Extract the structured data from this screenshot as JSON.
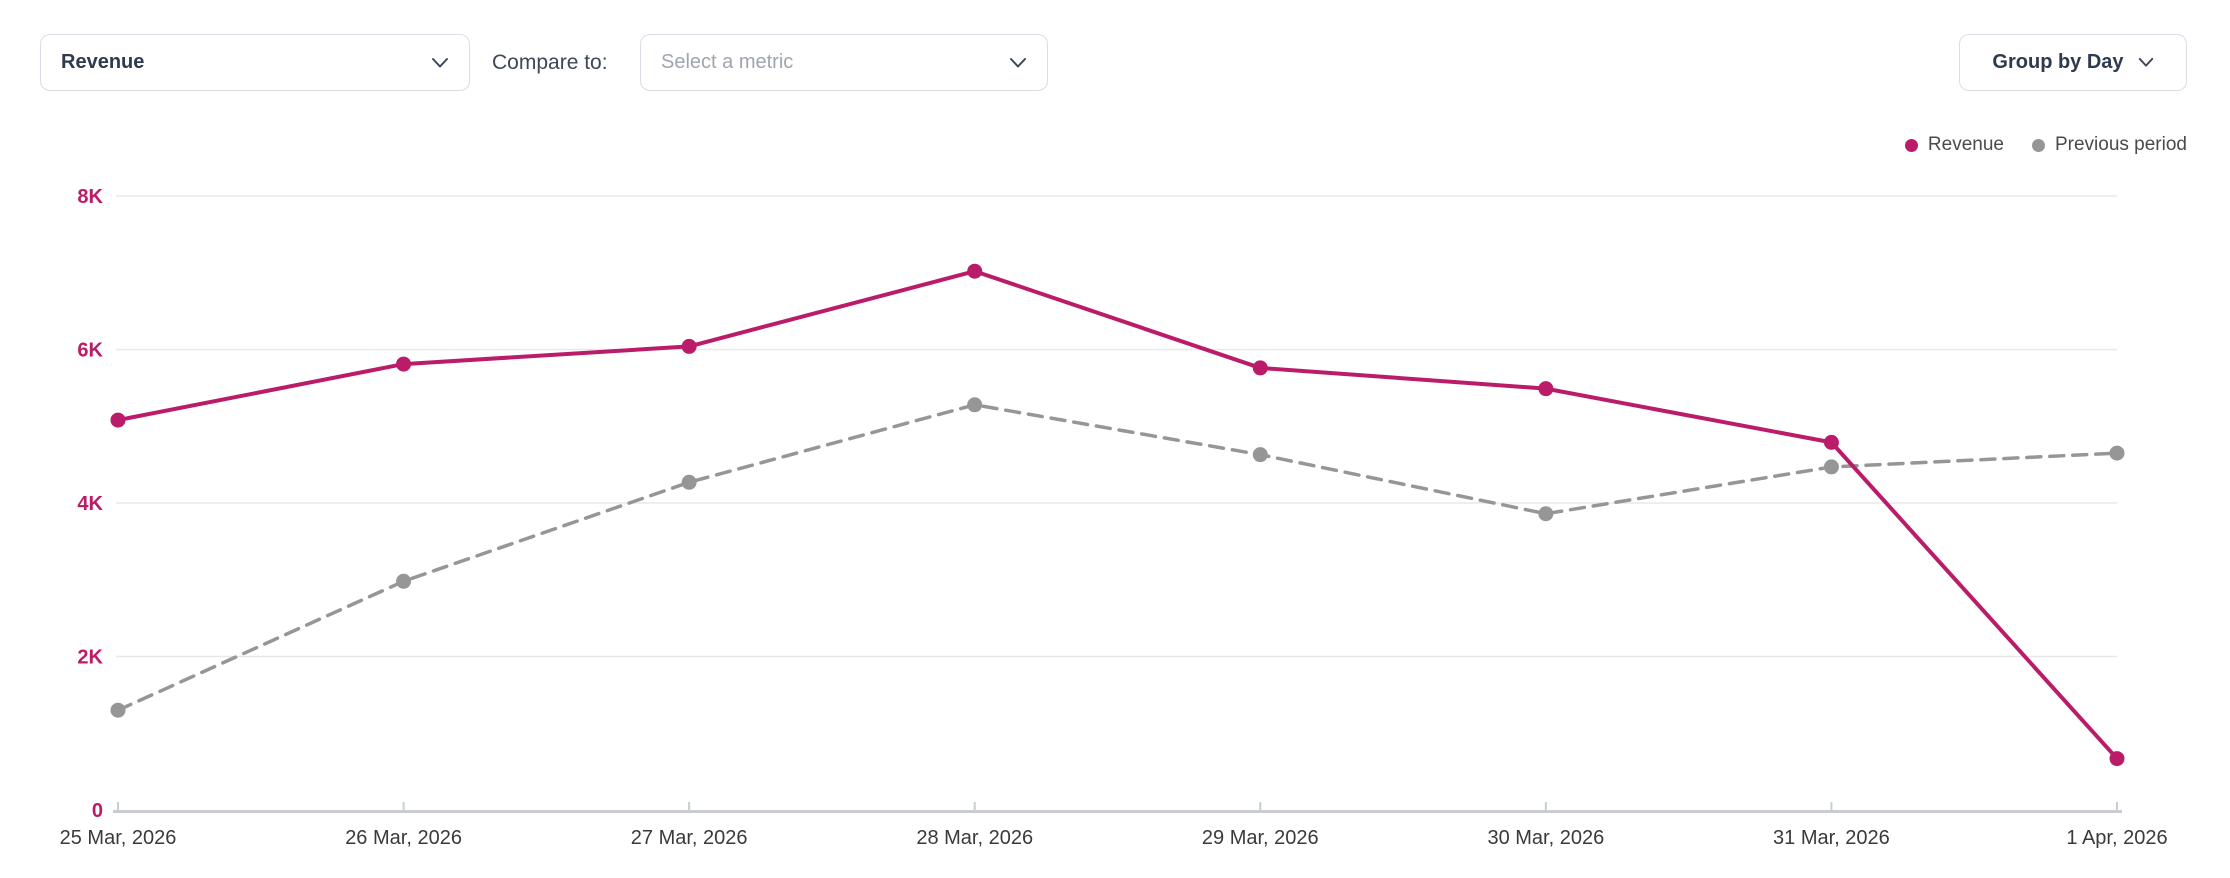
{
  "toolbar": {
    "metric_dropdown": {
      "value": "Revenue"
    },
    "compare_label": "Compare to:",
    "compare_dropdown": {
      "placeholder": "Select a metric"
    },
    "group_by_dropdown": {
      "value": "Group by Day"
    }
  },
  "chart_data": {
    "type": "line",
    "title": "",
    "xlabel": "",
    "ylabel": "",
    "categories": [
      "25 Mar, 2026",
      "26 Mar, 2026",
      "27 Mar, 2026",
      "28 Mar, 2026",
      "29 Mar, 2026",
      "30 Mar, 2026",
      "31 Mar, 2026",
      "1 Apr, 2026"
    ],
    "series": [
      {
        "name": "Revenue",
        "color": "#bb1c69",
        "line_style": "solid",
        "values": [
          5080,
          5810,
          6040,
          7020,
          5760,
          5490,
          4790,
          670
        ]
      },
      {
        "name": "Previous period",
        "color": "#969696",
        "line_style": "dashed",
        "values": [
          1300,
          2980,
          4270,
          5280,
          4630,
          3860,
          4470,
          4650
        ]
      }
    ],
    "ylim": [
      0,
      8000
    ],
    "yticks": [
      {
        "value": 0,
        "label": "0"
      },
      {
        "value": 2000,
        "label": "2K"
      },
      {
        "value": 4000,
        "label": "4K"
      },
      {
        "value": 6000,
        "label": "6K"
      },
      {
        "value": 8000,
        "label": "8K"
      }
    ],
    "grid": true,
    "legend_position": "top-right"
  },
  "colors": {
    "accent": "#bb1c69",
    "previous_period": "#969696",
    "gridline": "#e8e8e8",
    "axis_line": "#c9cdd2",
    "x_tick_label": "#3a3a3a",
    "y_tick_label": "#bb1c69"
  }
}
